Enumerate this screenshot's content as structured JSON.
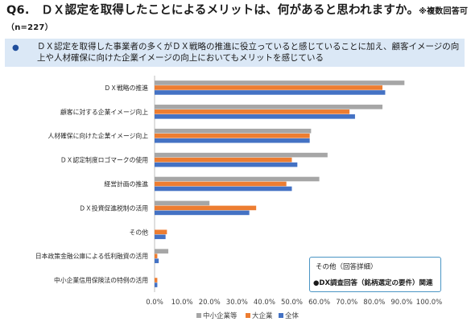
{
  "header": {
    "title": "Q6.　ＤＸ認定を取得したことによるメリットは、何があると思われますか。",
    "title_note": "※複数回答可（n=227）"
  },
  "summary": {
    "bullet": "●",
    "text": "ＤＸ認定を取得した事業者の多くがＤＸ戦略の推進に役立っていると感じていることに加え、顧客イメージの向上や人材確保に向けた企業イメージの向上においてもメリットを感じている"
  },
  "note_box": {
    "title": "その他（回答詳細）",
    "item": "●DX調査回答（銘柄選定の要件）関連"
  },
  "colors": {
    "sme": "#a6a6a6",
    "large": "#ed7d31",
    "all": "#4472c4"
  },
  "chart_data": {
    "type": "bar",
    "orientation": "horizontal",
    "categories": [
      "ＤＸ戦略の推進",
      "顧客に対する企業イメージ向上",
      "人材確保に向けた企業イメージ向上",
      "ＤＸ認定制度ロゴマークの使用",
      "経営計画の推進",
      "ＤＸ投資促進税制の活用",
      "その他",
      "日本政策金融公庫による低利融資の活用",
      "中小企業信用保険法の特例の活用"
    ],
    "series": [
      {
        "name": "中小企業等",
        "values": [
          91.0,
          83.0,
          57.0,
          63.0,
          60.0,
          20.0,
          0.0,
          5.0,
          0.0
        ]
      },
      {
        "name": "大企業",
        "values": [
          83.0,
          71.0,
          56.5,
          50.0,
          48.0,
          37.0,
          4.5,
          1.0,
          1.0
        ]
      },
      {
        "name": "全体",
        "values": [
          84.0,
          73.0,
          56.5,
          52.0,
          50.0,
          34.5,
          4.0,
          1.5,
          1.0
        ]
      }
    ],
    "xlim": [
      0,
      100
    ],
    "xticks": [
      "0.0%",
      "10.0%",
      "20.0%",
      "30.0%",
      "40.0%",
      "50.0%",
      "60.0%",
      "70.0%",
      "80.0%",
      "90.0%",
      "100.0%"
    ],
    "legend_position": "bottom"
  }
}
